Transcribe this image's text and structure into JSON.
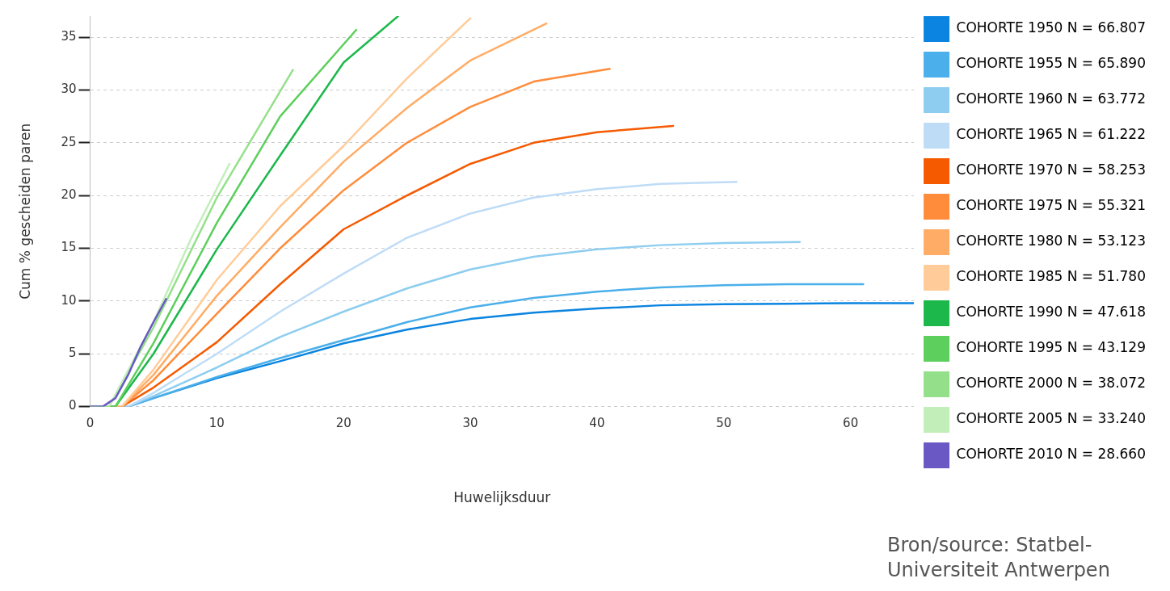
{
  "chart_data": {
    "type": "line",
    "xlabel": "Huwelijksduur",
    "ylabel": "Cum % gescheiden paren",
    "xlim": [
      0,
      65
    ],
    "xticks": [
      0,
      10,
      20,
      30,
      40,
      50,
      60
    ],
    "ylim": [
      0,
      37
    ],
    "yticks": [
      0,
      5,
      10,
      15,
      20,
      25,
      30,
      35
    ],
    "grid": "y",
    "legend": "right",
    "marker": "none",
    "line_style": "solid",
    "annotations": [
      "Bron/source: Statbel-Universiteit Antwerpen"
    ],
    "series": [
      {
        "name": "COHORTE 1950 N = 66.807",
        "color": "#0a84e0",
        "x": [
          0,
          3,
          5,
          10,
          15,
          20,
          25,
          30,
          35,
          40,
          45,
          50,
          55,
          60,
          65
        ],
        "values": [
          0,
          0,
          0.8,
          2.7,
          4.3,
          6.0,
          7.3,
          8.3,
          8.9,
          9.3,
          9.6,
          9.7,
          9.75,
          9.8,
          9.8
        ]
      },
      {
        "name": "COHORTE 1955 N = 65.890",
        "color": "#4aafea",
        "x": [
          0,
          3,
          5,
          10,
          15,
          20,
          25,
          30,
          35,
          40,
          45,
          50,
          55,
          61
        ],
        "values": [
          0,
          0,
          0.8,
          2.8,
          4.6,
          6.3,
          8.0,
          9.4,
          10.3,
          10.9,
          11.3,
          11.5,
          11.6,
          11.6
        ]
      },
      {
        "name": "COHORTE 1960 N = 63.772",
        "color": "#8ecdf0",
        "x": [
          0,
          3,
          5,
          10,
          15,
          20,
          25,
          30,
          35,
          40,
          45,
          50,
          56
        ],
        "values": [
          0,
          0,
          1,
          3.7,
          6.6,
          9.0,
          11.2,
          13.0,
          14.2,
          14.9,
          15.3,
          15.5,
          15.6
        ]
      },
      {
        "name": "COHORTE 1965 N = 61.222",
        "color": "#bfdcf7",
        "x": [
          0,
          3,
          5,
          10,
          15,
          20,
          25,
          30,
          35,
          40,
          45,
          51
        ],
        "values": [
          0,
          0,
          1.3,
          5.0,
          9.0,
          12.6,
          16.0,
          18.3,
          19.8,
          20.6,
          21.1,
          21.3
        ]
      },
      {
        "name": "COHORTE 1970 N = 58.253",
        "color": "#f55a00",
        "x": [
          0,
          2.5,
          5,
          10,
          15,
          20,
          25,
          30,
          35,
          40,
          46
        ],
        "values": [
          0,
          0,
          1.8,
          6.1,
          11.6,
          16.8,
          20.0,
          23.0,
          25.0,
          26.0,
          26.6
        ]
      },
      {
        "name": "COHORTE 1975 N = 55.321",
        "color": "#ff8c3a",
        "x": [
          0,
          2.5,
          5,
          10,
          15,
          20,
          25,
          30,
          35,
          41
        ],
        "values": [
          0,
          0,
          2.5,
          8.8,
          15.0,
          20.5,
          25.0,
          28.4,
          30.8,
          32.0
        ]
      },
      {
        "name": "COHORTE 1980 N = 53.123",
        "color": "#ffad66",
        "x": [
          0,
          2.5,
          5,
          10,
          15,
          20,
          25,
          30,
          36
        ],
        "values": [
          0,
          0,
          3,
          10.5,
          17.0,
          23.2,
          28.3,
          32.8,
          36.3
        ]
      },
      {
        "name": "COHORTE 1985 N = 51.780",
        "color": "#ffcc99",
        "x": [
          0,
          2.5,
          5,
          10,
          15,
          20,
          25,
          30
        ],
        "values": [
          0,
          0,
          3.5,
          12.0,
          19.0,
          24.7,
          31.1,
          36.8
        ]
      },
      {
        "name": "COHORTE 1990 N = 47.618",
        "color": "#1db84b",
        "x": [
          0,
          2,
          5,
          10,
          15,
          20,
          24.3
        ],
        "values": [
          0,
          0,
          5,
          14.9,
          23.8,
          32.6,
          37
        ]
      },
      {
        "name": "COHORTE 1995 N = 43.129",
        "color": "#5ccf5c",
        "x": [
          0,
          2,
          5,
          10,
          15,
          21
        ],
        "values": [
          0,
          0,
          6,
          17.4,
          27.5,
          35.7
        ]
      },
      {
        "name": "COHORTE 2000 N = 38.072",
        "color": "#94e08a",
        "x": [
          0,
          1.5,
          5,
          10,
          16
        ],
        "values": [
          0,
          0,
          7.5,
          19.8,
          31.9
        ]
      },
      {
        "name": "COHORTE 2005 N = 33.240",
        "color": "#c2efb9",
        "x": [
          0,
          1.5,
          5,
          8,
          11
        ],
        "values": [
          0,
          0,
          8,
          16,
          23
        ]
      },
      {
        "name": "COHORTE 2010 N = 28.660",
        "color": "#6a58c4",
        "x": [
          0,
          1,
          2,
          3,
          4,
          5,
          6
        ],
        "values": [
          0,
          0,
          0.8,
          3,
          5.7,
          8,
          10.2
        ]
      }
    ]
  }
}
